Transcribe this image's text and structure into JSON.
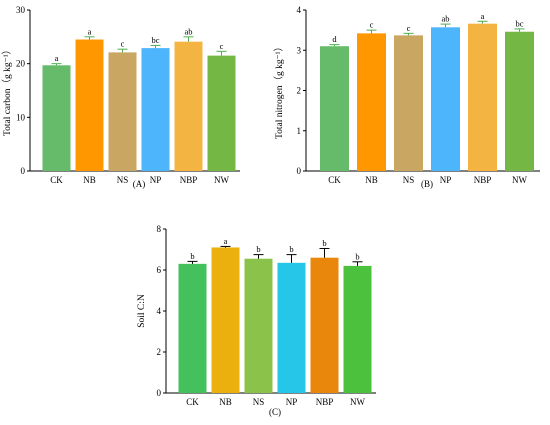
{
  "chart_data": [
    {
      "type": "bar",
      "panel_label": "(A)",
      "ylabel": "Total carbon（g kg⁻¹）",
      "ylim": [
        0,
        30
      ],
      "yticks": [
        0,
        10,
        20,
        30
      ],
      "categories": [
        "CK",
        "NB",
        "NS",
        "NP",
        "NBP",
        "NW"
      ],
      "values": [
        19.7,
        24.5,
        22.1,
        22.9,
        24.1,
        21.5
      ],
      "errors": [
        0.3,
        0.5,
        0.6,
        0.5,
        0.9,
        0.8
      ],
      "letters": [
        "a",
        "a",
        "c",
        "bc",
        "ab",
        "c"
      ],
      "colors": [
        "#66bb6a",
        "#ff9800",
        "#c9a661",
        "#4db5fb",
        "#f4b442",
        "#74b744"
      ],
      "error_color": "#4caf50"
    },
    {
      "type": "bar",
      "panel_label": "(B)",
      "ylabel": "Total nitrogen（g kg⁻¹）",
      "ylim": [
        0,
        4
      ],
      "yticks": [
        0,
        1,
        2,
        3,
        4
      ],
      "categories": [
        "CK",
        "NB",
        "NS",
        "NP",
        "NBP",
        "NW"
      ],
      "values": [
        3.1,
        3.42,
        3.37,
        3.57,
        3.66,
        3.46
      ],
      "errors": [
        0.04,
        0.08,
        0.05,
        0.08,
        0.06,
        0.07
      ],
      "letters": [
        "d",
        "c",
        "c",
        "ab",
        "a",
        "bc"
      ],
      "colors": [
        "#66bb6a",
        "#ff9800",
        "#c9a661",
        "#4db5fb",
        "#f4b442",
        "#74b744"
      ],
      "error_color": "#4caf50"
    },
    {
      "type": "bar",
      "panel_label": "(C)",
      "ylabel": "Soil C:N",
      "ylim": [
        0,
        8
      ],
      "yticks": [
        0,
        2,
        4,
        6,
        8
      ],
      "categories": [
        "CK",
        "NB",
        "NS",
        "NP",
        "NBP",
        "NW"
      ],
      "values": [
        6.3,
        7.1,
        6.55,
        6.35,
        6.6,
        6.2
      ],
      "errors": [
        0.12,
        0.05,
        0.2,
        0.4,
        0.45,
        0.2
      ],
      "letters": [
        "b",
        "a",
        "b",
        "b",
        "b",
        "b"
      ],
      "colors": [
        "#44c05c",
        "#ecb00e",
        "#8bc34a",
        "#26c6e8",
        "#e9870d",
        "#4cc13e"
      ],
      "error_color": "#000000"
    }
  ]
}
